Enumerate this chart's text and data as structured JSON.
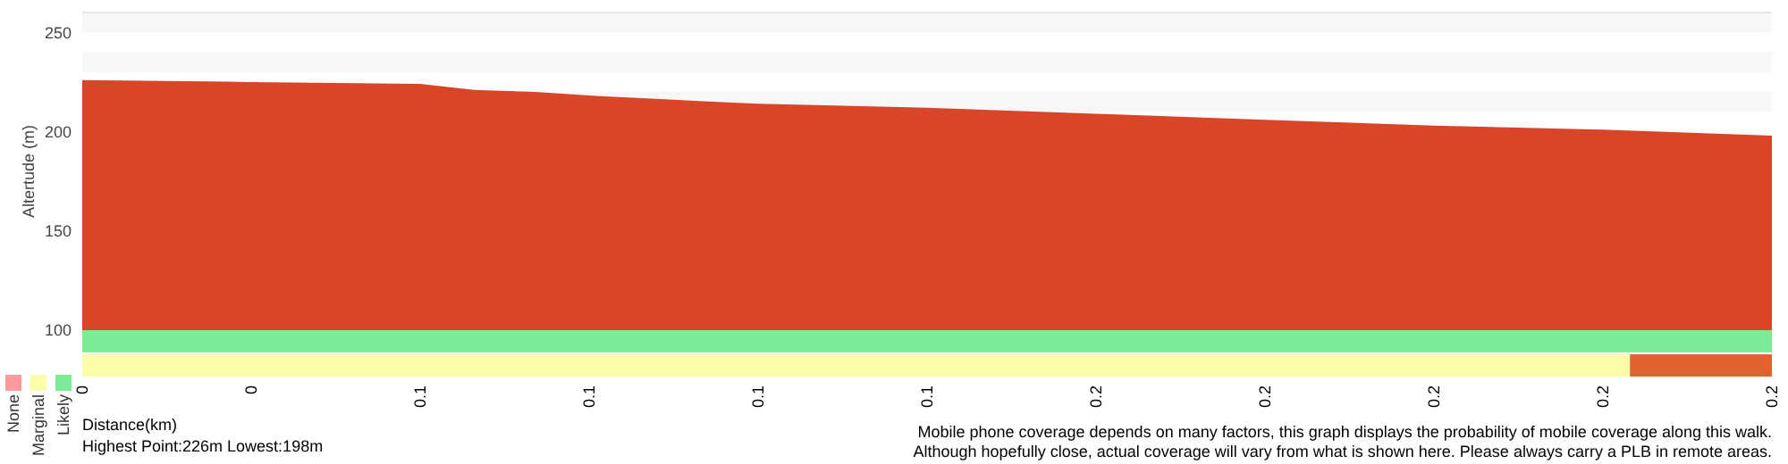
{
  "chart_data": [
    {
      "type": "area",
      "ylabel": "Altertude (m)",
      "x": [
        0,
        0.025,
        0.05,
        0.058,
        0.067,
        0.076,
        0.094,
        0.1,
        0.125,
        0.15,
        0.175,
        0.2,
        0.225,
        0.25
      ],
      "series": [
        {
          "color": "#d94527",
          "values": [
            226,
            225,
            224,
            221,
            220,
            218,
            215,
            214,
            212,
            209,
            206,
            203,
            201,
            198
          ]
        }
      ],
      "xlim": [
        0,
        0.25
      ],
      "ylim": [
        100,
        260
      ],
      "yticks": [
        100,
        150,
        200,
        250
      ],
      "bands": [
        {
          "axis": "y",
          "from": 250,
          "to": 260,
          "color": "#f7f7f7"
        },
        {
          "axis": "y",
          "from": 230,
          "to": 240,
          "color": "#f7f7f7"
        },
        {
          "axis": "y",
          "from": 210,
          "to": 220,
          "color": "#f7f7f7"
        }
      ],
      "tick_labels": "y"
    },
    {
      "type": "bar",
      "orientation": "horizontal",
      "stacked": true,
      "categories": [
        null,
        null
      ],
      "xlabel": "Distance(km)",
      "series": [
        {
          "name": "Likely",
          "color": "#7deb95",
          "values": [
            0.25,
            0
          ]
        },
        {
          "name": "Marginal",
          "color": "#fdfca8",
          "values": [
            0,
            0.229
          ]
        },
        {
          "name": "None",
          "color": "#ff9a9a",
          "values": [
            0,
            0
          ]
        },
        {
          "color": "#e0622e",
          "values": [
            0,
            0.021
          ]
        }
      ],
      "xlim": [
        0,
        0.25
      ],
      "xticks": [
        {
          "value": 0,
          "label": "0"
        },
        {
          "value": 0.025,
          "label": "0"
        },
        {
          "value": 0.05,
          "label": "0.1"
        },
        {
          "value": 0.075,
          "label": "0.1"
        },
        {
          "value": 0.1,
          "label": "0.1"
        },
        {
          "value": 0.125,
          "label": "0.1"
        },
        {
          "value": 0.15,
          "label": "0.2"
        },
        {
          "value": 0.175,
          "label": "0.2"
        },
        {
          "value": 0.2,
          "label": "0.2"
        },
        {
          "value": 0.225,
          "label": "0.2"
        },
        {
          "value": 0.25,
          "label": "0.2"
        }
      ],
      "legend": "bottom left",
      "tick_labels": "x",
      "annotations": [
        "Highest Point:226m Lowest:198m",
        "Mobile phone coverage depends on many factors, this graph displays the probability of mobile coverage along this walk.",
        "Although hopefully close, actual coverage will vary from what is shown here. Please always carry a PLB in remote areas."
      ]
    }
  ]
}
